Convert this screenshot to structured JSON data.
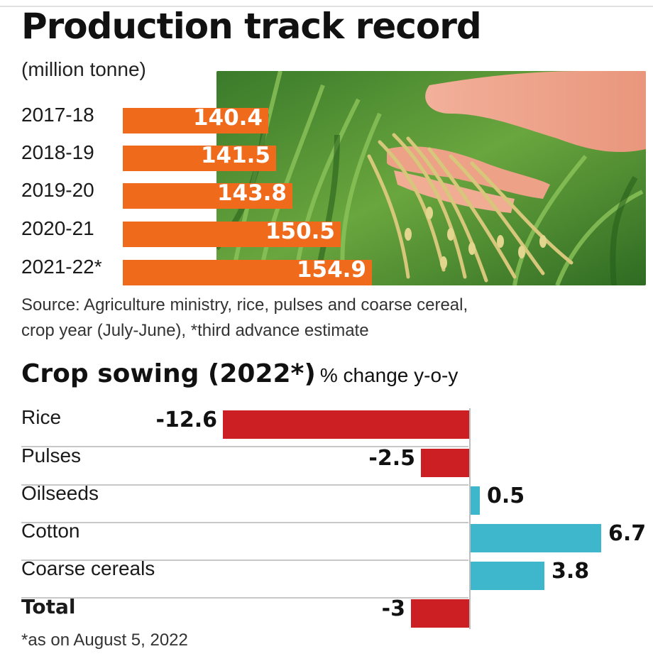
{
  "chart_data": [
    {
      "type": "bar",
      "title": "Production track record",
      "subtitle": "(million tonne)",
      "categories": [
        "2017-18",
        "2018-19",
        "2019-20",
        "2020-21",
        "2021-22*"
      ],
      "values": [
        140.4,
        141.5,
        143.8,
        150.5,
        154.9
      ],
      "colors": {
        "bar": "#f06a1c",
        "value_text": "#ffffff"
      },
      "source": [
        "Source: Agriculture ministry,  rice, pulses and  coarse cereal,",
        "crop year (July-June),  *third advance estimate"
      ]
    },
    {
      "type": "bar",
      "title": "Crop sowing (2022*)",
      "subtitle": "% change y-o-y",
      "categories": [
        "Rice",
        "Pulses",
        "Oilseeds",
        "Cotton",
        "Coarse cereals",
        "Total"
      ],
      "values": [
        -12.6,
        -2.5,
        0.5,
        6.7,
        3.8,
        -3
      ],
      "value_labels": [
        "-12.6",
        "-2.5",
        "0.5",
        "6.7",
        "3.8",
        "-3"
      ],
      "colors": {
        "negative": "#cc1f24",
        "positive": "#3eb6cc"
      },
      "footnote": "*as on August 5, 2022"
    }
  ]
}
